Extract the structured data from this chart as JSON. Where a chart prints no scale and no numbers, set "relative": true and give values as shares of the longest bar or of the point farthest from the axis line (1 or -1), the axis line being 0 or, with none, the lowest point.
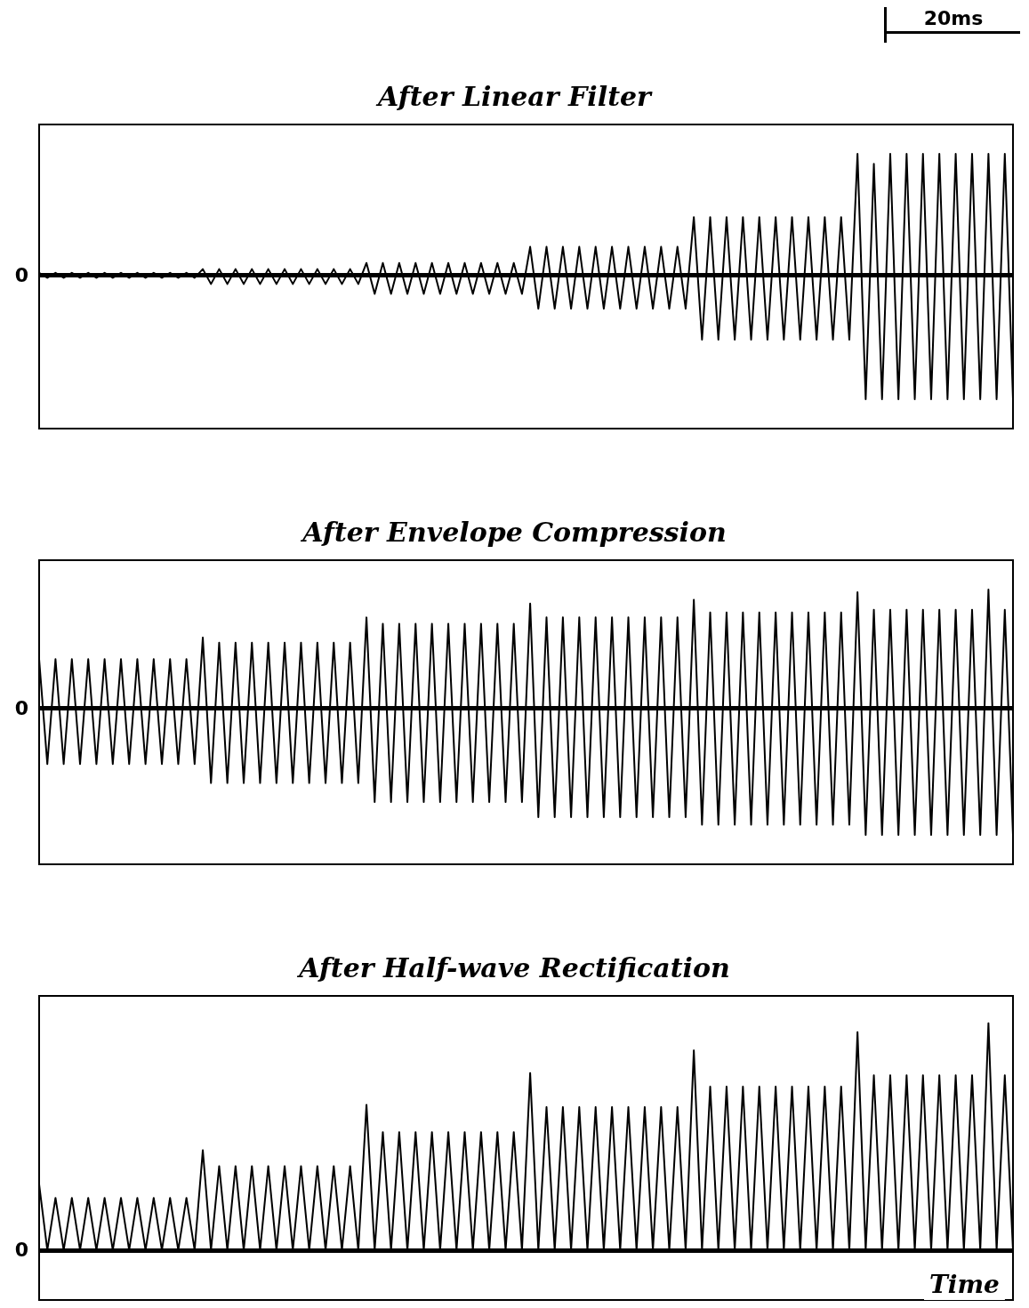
{
  "chart_data": [
    {
      "type": "line",
      "title": "After Linear Filter",
      "relative": true,
      "grid": false,
      "marker": "none",
      "line_style": "solid",
      "annotations": [
        "20ms"
      ],
      "categories": [
        null,
        null,
        null,
        null,
        null,
        null,
        null,
        null,
        null,
        null,
        null,
        null,
        null,
        null,
        null,
        null,
        null,
        null,
        null,
        null,
        null,
        null,
        null,
        null,
        null,
        null,
        null,
        null,
        null,
        null,
        null,
        null,
        null,
        null,
        null,
        null,
        null,
        null,
        null,
        null,
        null,
        null,
        null,
        null,
        null,
        null,
        null,
        null,
        null,
        null,
        null,
        null,
        null,
        null,
        null,
        null,
        null,
        null,
        null,
        null,
        null,
        null,
        null,
        null,
        null,
        null,
        null,
        null,
        null,
        null,
        null,
        null,
        null,
        null,
        null,
        null,
        null,
        null,
        null,
        null,
        null,
        null,
        null,
        null,
        null,
        null,
        null,
        null,
        null,
        null,
        null,
        null,
        null,
        null,
        null,
        null,
        null,
        null,
        null,
        null,
        null,
        null,
        null,
        null,
        null,
        null,
        null,
        null,
        null,
        null,
        null,
        null,
        null,
        null,
        null,
        null,
        null,
        null,
        null,
        null
      ],
      "ref_lines": [
        {
          "axis": "y",
          "value": 0,
          "label": "0",
          "color": "#000000"
        }
      ],
      "series": [
        {
          "color": "#000000",
          "values": [
            0.02,
            -0.02,
            0.02,
            -0.02,
            0.02,
            -0.02,
            0.02,
            -0.02,
            0.02,
            -0.02,
            0.02,
            -0.02,
            0.02,
            -0.02,
            0.02,
            -0.02,
            0.02,
            -0.02,
            0.02,
            -0.02,
            0.05,
            -0.07,
            0.05,
            -0.07,
            0.05,
            -0.07,
            0.05,
            -0.07,
            0.05,
            -0.07,
            0.05,
            -0.07,
            0.05,
            -0.07,
            0.05,
            -0.07,
            0.05,
            -0.07,
            0.05,
            -0.07,
            0.1,
            -0.15,
            0.1,
            -0.15,
            0.1,
            -0.15,
            0.1,
            -0.15,
            0.1,
            -0.15,
            0.1,
            -0.15,
            0.1,
            -0.15,
            0.1,
            -0.15,
            0.1,
            -0.15,
            0.1,
            -0.15,
            0.23,
            -0.27,
            0.23,
            -0.27,
            0.23,
            -0.27,
            0.23,
            -0.27,
            0.23,
            -0.27,
            0.23,
            -0.27,
            0.23,
            -0.27,
            0.23,
            -0.27,
            0.23,
            -0.27,
            0.23,
            -0.27,
            0.47,
            -0.52,
            0.47,
            -0.52,
            0.47,
            -0.52,
            0.47,
            -0.52,
            0.47,
            -0.52,
            0.47,
            -0.52,
            0.47,
            -0.52,
            0.47,
            -0.52,
            0.47,
            -0.52,
            0.47,
            -0.52,
            0.98,
            -1,
            0.9,
            -1,
            0.98,
            -1,
            0.98,
            -1,
            0.98,
            -1,
            0.98,
            -1,
            0.98,
            -1,
            0.98,
            -1,
            0.98,
            -1,
            0.98,
            -1
          ]
        }
      ]
    },
    {
      "type": "line",
      "title": "After Envelope Compression",
      "relative": true,
      "grid": false,
      "marker": "none",
      "line_style": "solid",
      "categories": [
        null,
        null,
        null,
        null,
        null,
        null,
        null,
        null,
        null,
        null,
        null,
        null,
        null,
        null,
        null,
        null,
        null,
        null,
        null,
        null,
        null,
        null,
        null,
        null,
        null,
        null,
        null,
        null,
        null,
        null,
        null,
        null,
        null,
        null,
        null,
        null,
        null,
        null,
        null,
        null,
        null,
        null,
        null,
        null,
        null,
        null,
        null,
        null,
        null,
        null,
        null,
        null,
        null,
        null,
        null,
        null,
        null,
        null,
        null,
        null,
        null,
        null,
        null,
        null,
        null,
        null,
        null,
        null,
        null,
        null,
        null,
        null,
        null,
        null,
        null,
        null,
        null,
        null,
        null,
        null,
        null,
        null,
        null,
        null,
        null,
        null,
        null,
        null,
        null,
        null,
        null,
        null,
        null,
        null,
        null,
        null,
        null,
        null,
        null,
        null,
        null,
        null,
        null,
        null,
        null,
        null,
        null,
        null,
        null,
        null,
        null,
        null,
        null,
        null,
        null,
        null,
        null,
        null,
        null,
        null
      ],
      "ref_lines": [
        {
          "axis": "y",
          "value": 0,
          "label": "0",
          "color": "#000000"
        }
      ],
      "series": [
        {
          "color": "#000000",
          "values": [
            0.39,
            -0.44,
            0.39,
            -0.44,
            0.39,
            -0.44,
            0.39,
            -0.44,
            0.39,
            -0.44,
            0.39,
            -0.44,
            0.39,
            -0.44,
            0.39,
            -0.44,
            0.39,
            -0.44,
            0.39,
            -0.44,
            0.56,
            -0.59,
            0.52,
            -0.59,
            0.52,
            -0.59,
            0.52,
            -0.59,
            0.52,
            -0.59,
            0.52,
            -0.59,
            0.52,
            -0.59,
            0.52,
            -0.59,
            0.52,
            -0.59,
            0.52,
            -0.59,
            0.72,
            -0.74,
            0.67,
            -0.74,
            0.67,
            -0.74,
            0.67,
            -0.74,
            0.67,
            -0.74,
            0.67,
            -0.74,
            0.67,
            -0.74,
            0.67,
            -0.74,
            0.67,
            -0.74,
            0.67,
            -0.74,
            0.83,
            -0.86,
            0.72,
            -0.86,
            0.72,
            -0.86,
            0.72,
            -0.86,
            0.72,
            -0.86,
            0.72,
            -0.86,
            0.72,
            -0.86,
            0.72,
            -0.86,
            0.72,
            -0.86,
            0.72,
            -0.86,
            0.86,
            -0.92,
            0.76,
            -0.92,
            0.76,
            -0.92,
            0.76,
            -0.92,
            0.76,
            -0.92,
            0.76,
            -0.92,
            0.76,
            -0.92,
            0.76,
            -0.92,
            0.76,
            -0.92,
            0.76,
            -0.92,
            0.92,
            -1,
            0.78,
            -1,
            0.78,
            -1,
            0.78,
            -1,
            0.78,
            -1,
            0.78,
            -1,
            0.78,
            -1,
            0.78,
            -1,
            0.94,
            -1,
            0.78,
            -1
          ]
        }
      ]
    },
    {
      "type": "line",
      "title": "After Half-wave Rectification",
      "xlabel": "Time",
      "relative": true,
      "grid": false,
      "marker": "none",
      "line_style": "solid",
      "categories": [
        null,
        null,
        null,
        null,
        null,
        null,
        null,
        null,
        null,
        null,
        null,
        null,
        null,
        null,
        null,
        null,
        null,
        null,
        null,
        null,
        null,
        null,
        null,
        null,
        null,
        null,
        null,
        null,
        null,
        null,
        null,
        null,
        null,
        null,
        null,
        null,
        null,
        null,
        null,
        null,
        null,
        null,
        null,
        null,
        null,
        null,
        null,
        null,
        null,
        null,
        null,
        null,
        null,
        null,
        null,
        null,
        null,
        null,
        null,
        null,
        null,
        null,
        null,
        null,
        null,
        null,
        null,
        null,
        null,
        null,
        null,
        null,
        null,
        null,
        null,
        null,
        null,
        null,
        null,
        null,
        null,
        null,
        null,
        null,
        null,
        null,
        null,
        null,
        null,
        null,
        null,
        null,
        null,
        null,
        null,
        null,
        null,
        null,
        null,
        null,
        null,
        null,
        null,
        null,
        null,
        null,
        null,
        null,
        null,
        null,
        null,
        null,
        null,
        null,
        null,
        null,
        null,
        null,
        null,
        null
      ],
      "ref_lines": [
        {
          "axis": "y",
          "value": 0,
          "label": "0",
          "color": "#000000"
        }
      ],
      "series": [
        {
          "color": "#000000",
          "values": [
            0.29,
            0,
            0.23,
            0,
            0.23,
            0,
            0.23,
            0,
            0.23,
            0,
            0.23,
            0,
            0.23,
            0,
            0.23,
            0,
            0.23,
            0,
            0.23,
            0,
            0.44,
            0,
            0.37,
            0,
            0.37,
            0,
            0.37,
            0,
            0.37,
            0,
            0.37,
            0,
            0.37,
            0,
            0.37,
            0,
            0.37,
            0,
            0.37,
            0,
            0.64,
            0,
            0.52,
            0,
            0.52,
            0,
            0.52,
            0,
            0.52,
            0,
            0.52,
            0,
            0.52,
            0,
            0.52,
            0,
            0.52,
            0,
            0.52,
            0,
            0.78,
            0,
            0.63,
            0,
            0.63,
            0,
            0.63,
            0,
            0.63,
            0,
            0.63,
            0,
            0.63,
            0,
            0.63,
            0,
            0.63,
            0,
            0.63,
            0,
            0.88,
            0,
            0.72,
            0,
            0.72,
            0,
            0.72,
            0,
            0.72,
            0,
            0.72,
            0,
            0.72,
            0,
            0.72,
            0,
            0.72,
            0,
            0.72,
            0,
            0.96,
            0,
            0.77,
            0,
            0.77,
            0,
            0.77,
            0,
            0.77,
            0,
            0.77,
            0,
            0.77,
            0,
            0.77,
            0,
            1,
            0,
            0.77,
            0
          ]
        }
      ]
    }
  ]
}
